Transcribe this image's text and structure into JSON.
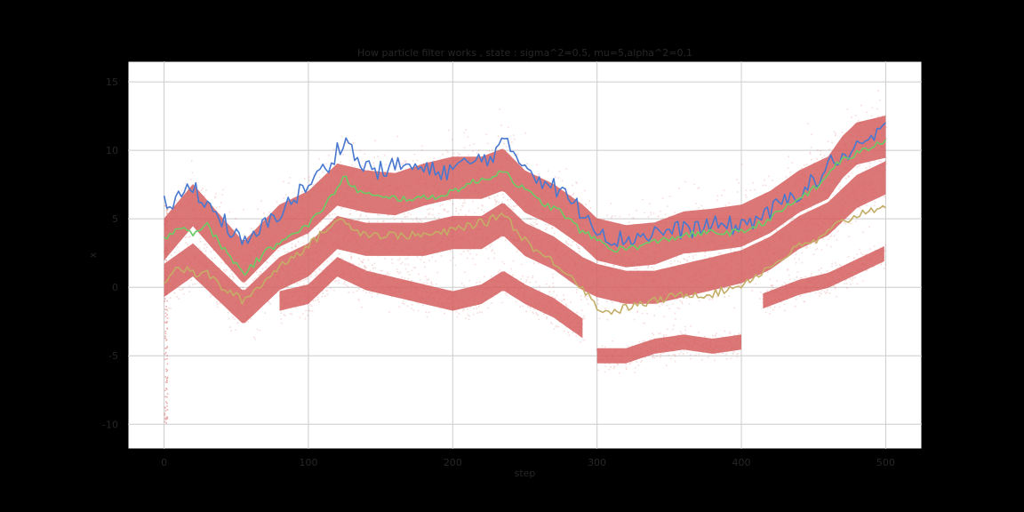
{
  "chart_data": {
    "type": "line",
    "title": "How particle filter works , state : sigma^2=0.5, mu=5,alpha^2=0.1",
    "xlabel": "step",
    "ylabel": "x",
    "xlim": [
      -25,
      525
    ],
    "ylim": [
      -11.8,
      16.5
    ],
    "xticks": [
      0,
      100,
      200,
      300,
      400,
      500
    ],
    "yticks": [
      -10,
      -5,
      0,
      5,
      10,
      15
    ],
    "grid": true,
    "legend": "none",
    "colors": {
      "particles": "#d65f5f",
      "upper": "#4878cf",
      "middle": "#6acc65",
      "lower": "#c4ad66"
    },
    "particle_bands": [
      {
        "name": "particle band 1",
        "x": [
          0,
          20,
          55,
          80,
          100,
          120,
          140,
          160,
          180,
          200,
          220,
          235,
          250,
          270,
          290,
          300,
          320,
          340,
          360,
          380,
          400,
          420,
          440,
          460,
          470,
          480,
          500
        ],
        "y": [
          3.5,
          6.0,
          1.8,
          4.5,
          5.5,
          7.5,
          7.0,
          6.8,
          7.5,
          8.0,
          8.0,
          8.6,
          7.0,
          6.0,
          4.5,
          3.5,
          3.0,
          3.2,
          4.0,
          4.2,
          4.5,
          5.5,
          7.0,
          8.0,
          9.5,
          10.5,
          11.0
        ],
        "spread": 2.8
      },
      {
        "name": "particle band 2",
        "x": [
          0,
          20,
          55,
          80,
          100,
          120,
          140,
          160,
          180,
          200,
          220,
          235,
          250,
          270,
          290,
          300,
          320,
          340,
          360,
          380,
          400,
          420,
          440,
          460,
          470,
          480,
          500
        ],
        "y": [
          0.5,
          2.0,
          -1.5,
          1.0,
          2.0,
          4.0,
          3.5,
          3.5,
          3.5,
          4.0,
          4.0,
          5.0,
          3.5,
          2.5,
          1.0,
          0.5,
          0.0,
          0.0,
          0.5,
          1.0,
          1.5,
          2.5,
          4.0,
          5.0,
          6.0,
          7.0,
          8.0
        ],
        "spread": 2.2
      },
      {
        "name": "particle band 3",
        "x": [
          80,
          100,
          120,
          140,
          160,
          180,
          200,
          220,
          235,
          250,
          270,
          290
        ],
        "y": [
          -1.0,
          -0.5,
          1.5,
          0.5,
          0.0,
          -0.5,
          -1.0,
          -0.5,
          0.5,
          -0.5,
          -1.5,
          -3.0
        ],
        "spread": 1.3
      },
      {
        "name": "particle band 4",
        "x": [
          300,
          320,
          340,
          360,
          380,
          400
        ],
        "y": [
          -5.0,
          -5.0,
          -4.3,
          -4.0,
          -4.3,
          -4.0
        ],
        "spread": 1.0
      },
      {
        "name": "particle band 5",
        "x": [
          415,
          440,
          460,
          480,
          500
        ],
        "y": [
          -1.0,
          0.0,
          0.5,
          1.5,
          2.5
        ],
        "spread": 1.0
      }
    ],
    "series": [
      {
        "x": [
          0,
          10,
          20,
          30,
          40,
          55,
          70,
          85,
          100,
          115,
          125,
          135,
          150,
          165,
          180,
          195,
          210,
          225,
          235,
          245,
          260,
          275,
          290,
          300,
          310,
          320,
          340,
          360,
          380,
          400,
          420,
          440,
          455,
          465,
          475,
          485,
          500
        ],
        "y": [
          6.0,
          6.5,
          7.5,
          6.0,
          5.0,
          3.0,
          4.5,
          6.0,
          7.5,
          9.0,
          11.0,
          9.0,
          8.5,
          9.0,
          8.5,
          8.5,
          9.0,
          9.5,
          10.5,
          9.5,
          8.0,
          7.0,
          5.5,
          4.5,
          3.5,
          3.5,
          4.0,
          4.2,
          4.5,
          4.5,
          5.5,
          7.0,
          8.0,
          9.5,
          9.5,
          10.5,
          11.5
        ]
      },
      {
        "x": [
          0,
          10,
          20,
          30,
          40,
          55,
          70,
          85,
          100,
          115,
          125,
          135,
          150,
          165,
          180,
          195,
          210,
          225,
          235,
          245,
          260,
          275,
          290,
          300,
          310,
          320,
          340,
          360,
          380,
          400,
          420,
          440,
          455,
          465,
          475,
          485,
          500
        ],
        "y": [
          3.5,
          4.5,
          4.0,
          4.5,
          3.0,
          1.0,
          2.5,
          3.8,
          4.5,
          6.5,
          8.0,
          7.0,
          6.5,
          6.5,
          6.5,
          6.8,
          7.5,
          8.0,
          8.6,
          7.5,
          6.3,
          5.5,
          4.0,
          3.5,
          2.8,
          2.8,
          3.3,
          3.8,
          4.0,
          4.0,
          5.0,
          6.5,
          7.5,
          9.0,
          9.5,
          10.0,
          10.8
        ]
      },
      {
        "x": [
          0,
          10,
          20,
          30,
          40,
          55,
          70,
          85,
          100,
          115,
          125,
          135,
          150,
          165,
          180,
          195,
          210,
          225,
          235,
          245,
          260,
          275,
          290,
          300,
          310,
          320,
          340,
          360,
          380,
          400,
          420,
          440,
          455,
          465,
          475,
          485,
          500
        ],
        "y": [
          0.5,
          1.5,
          1.0,
          1.0,
          0.0,
          -1.0,
          0.5,
          2.0,
          3.0,
          4.5,
          5.0,
          4.0,
          3.8,
          3.8,
          3.8,
          4.0,
          4.5,
          4.8,
          5.5,
          4.0,
          2.5,
          1.5,
          0.0,
          -1.5,
          -1.8,
          -1.5,
          -1.0,
          -0.5,
          -0.5,
          0.2,
          1.5,
          3.0,
          3.5,
          4.5,
          5.0,
          5.5,
          6.0
        ]
      }
    ]
  }
}
